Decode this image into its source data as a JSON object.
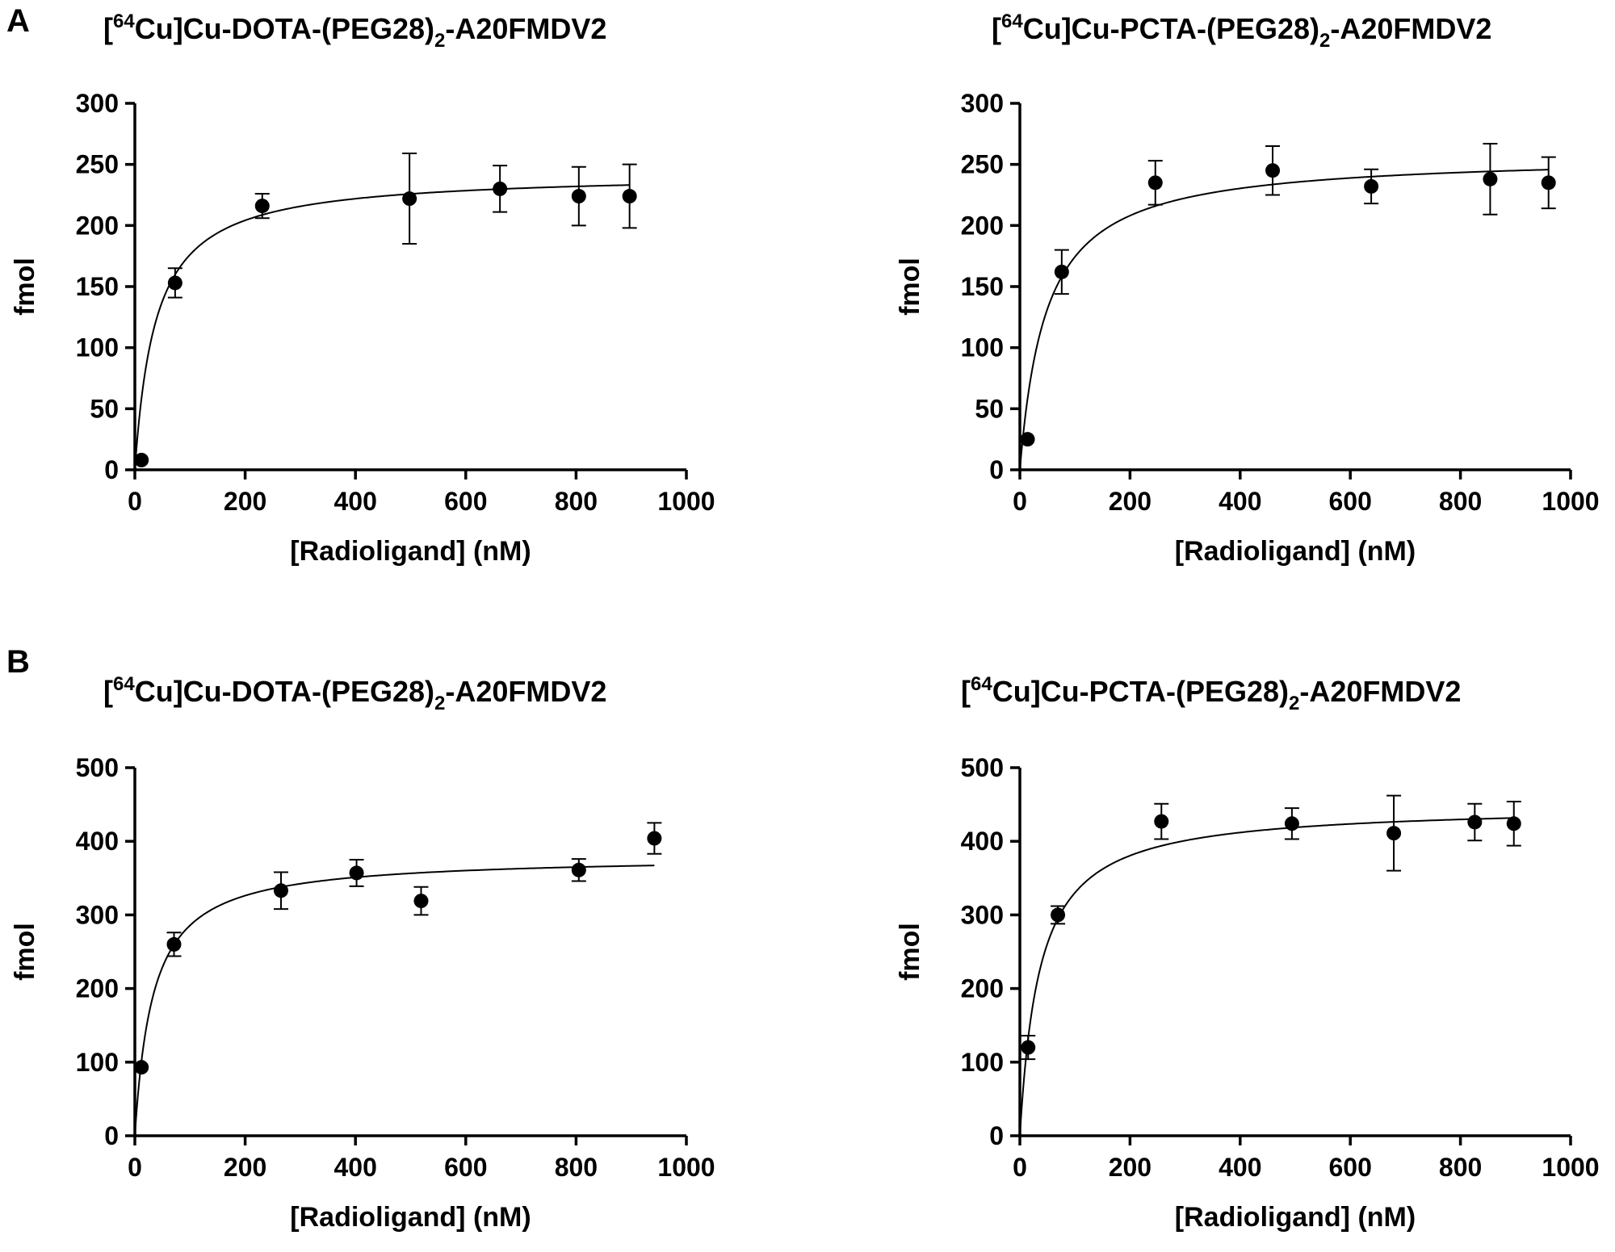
{
  "figure": {
    "panels": [
      {
        "letter": "A"
      },
      {
        "letter": "B"
      }
    ]
  },
  "chart_data": [
    {
      "type": "scatter",
      "panel": "A",
      "title_parts": {
        "pre": "[",
        "sup": "64",
        "mid": "Cu]Cu-DOTA-(PEG28)",
        "sub": "2",
        "post": "-A20FMDV2"
      },
      "xlabel": "[Radioligand] (nM)",
      "ylabel": "fmol",
      "xlim": [
        0,
        1000
      ],
      "ylim": [
        0,
        300
      ],
      "xticks": [
        0,
        200,
        400,
        600,
        800,
        1000
      ],
      "yticks": [
        0,
        50,
        100,
        150,
        200,
        250,
        300
      ],
      "grid": false,
      "x": [
        12,
        73,
        231,
        498,
        662,
        805,
        897
      ],
      "y": [
        8,
        153,
        216,
        222,
        230,
        224,
        224
      ],
      "err": [
        0,
        12,
        10,
        37,
        19,
        24,
        26
      ],
      "fit": {
        "Bmax": 243,
        "Kd": 38,
        "x_max": 897
      }
    },
    {
      "type": "scatter",
      "panel": "A",
      "title_parts": {
        "pre": "[",
        "sup": "64",
        "mid": "Cu]Cu-PCTA-(PEG28)",
        "sub": "2",
        "post": "-A20FMDV2"
      },
      "xlabel": "[Radioligand] (nM)",
      "ylabel": "fmol",
      "xlim": [
        0,
        1000
      ],
      "ylim": [
        0,
        300
      ],
      "xticks": [
        0,
        200,
        400,
        600,
        800,
        1000
      ],
      "yticks": [
        0,
        50,
        100,
        150,
        200,
        250,
        300
      ],
      "grid": false,
      "x": [
        14,
        76,
        246,
        459,
        638,
        854,
        960
      ],
      "y": [
        25,
        162,
        235,
        245,
        232,
        238,
        235
      ],
      "err": [
        0,
        18,
        18,
        20,
        14,
        29,
        21
      ],
      "fit": {
        "Bmax": 258,
        "Kd": 48,
        "x_max": 960
      }
    },
    {
      "type": "scatter",
      "panel": "B",
      "title_parts": {
        "pre": "[",
        "sup": "64",
        "mid": "Cu]Cu-DOTA-(PEG28)",
        "sub": "2",
        "post": "-A20FMDV2"
      },
      "xlabel": "[Radioligand] (nM)",
      "ylabel": "fmol",
      "xlim": [
        0,
        1000
      ],
      "ylim": [
        0,
        500
      ],
      "xticks": [
        0,
        200,
        400,
        600,
        800,
        1000
      ],
      "yticks": [
        0,
        100,
        200,
        300,
        400,
        500
      ],
      "grid": false,
      "x": [
        12,
        71,
        265,
        402,
        519,
        805,
        942
      ],
      "y": [
        93,
        260,
        333,
        357,
        319,
        361,
        404
      ],
      "err": [
        0,
        16,
        25,
        18,
        19,
        15,
        21
      ],
      "fit": {
        "Bmax": 380,
        "Kd": 33,
        "x_max": 942
      }
    },
    {
      "type": "scatter",
      "panel": "B",
      "title_parts": {
        "pre": "[",
        "sup": "64",
        "mid": "Cu]Cu-PCTA-(PEG28)",
        "sub": "2",
        "post": "-A20FMDV2"
      },
      "xlabel": "[Radioligand] (nM)",
      "ylabel": "fmol",
      "xlim": [
        0,
        1000
      ],
      "ylim": [
        0,
        500
      ],
      "xticks": [
        0,
        200,
        400,
        600,
        800,
        1000
      ],
      "yticks": [
        0,
        100,
        200,
        300,
        400,
        500
      ],
      "grid": false,
      "x": [
        15,
        69,
        257,
        494,
        679,
        826,
        897
      ],
      "y": [
        120,
        300,
        427,
        424,
        411,
        426,
        424
      ],
      "err": [
        16,
        12,
        24,
        21,
        51,
        25,
        30
      ],
      "fit": {
        "Bmax": 449,
        "Kd": 36,
        "x_max": 897
      }
    }
  ]
}
